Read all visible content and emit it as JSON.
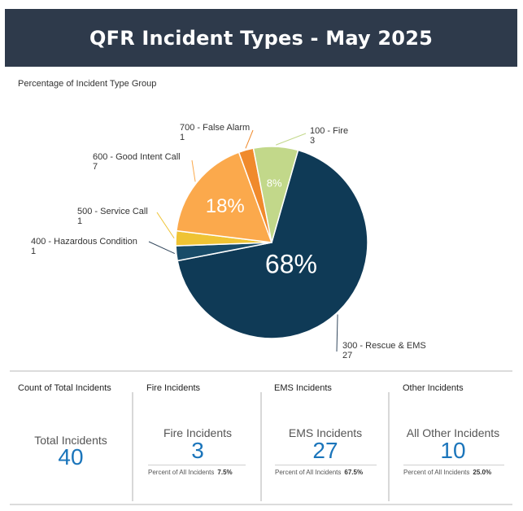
{
  "header": {
    "title": "QFR Incident Types - May 2025"
  },
  "chart_data": {
    "type": "pie",
    "title": "Percentage of Incident Type Group",
    "slices": [
      {
        "label": "300 - Rescue & EMS",
        "value": 27,
        "pct_label": "68%",
        "color": "#0f3a56"
      },
      {
        "label": "400 - Hazardous Condition",
        "value": 1,
        "pct_label": "",
        "color": "#184b68"
      },
      {
        "label": "500 - Service Call",
        "value": 1,
        "pct_label": "",
        "color": "#efc334"
      },
      {
        "label": "600 - Good Intent Call",
        "value": 7,
        "pct_label": "18%",
        "color": "#fba94c"
      },
      {
        "label": "700 - False Alarm",
        "value": 1,
        "pct_label": "",
        "color": "#f08a2c"
      },
      {
        "label": "100 - Fire",
        "value": 3,
        "pct_label": "8%",
        "color": "#c2d88a"
      }
    ]
  },
  "cards": [
    {
      "title": "Count of Total Incidents",
      "label": "Total Incidents",
      "value": "40"
    },
    {
      "title": "Fire Incidents",
      "label": "Fire Incidents",
      "value": "3",
      "pct_text": "Percent of All Incidents",
      "pct_value": "7.5%"
    },
    {
      "title": "EMS Incidents",
      "label": "EMS Incidents",
      "value": "27",
      "pct_text": "Percent of All Incidents",
      "pct_value": "67.5%"
    },
    {
      "title": "Other Incidents",
      "label": "All Other Incidents",
      "value": "10",
      "pct_text": "Percent of All Incidents",
      "pct_value": "25.0%"
    }
  ]
}
